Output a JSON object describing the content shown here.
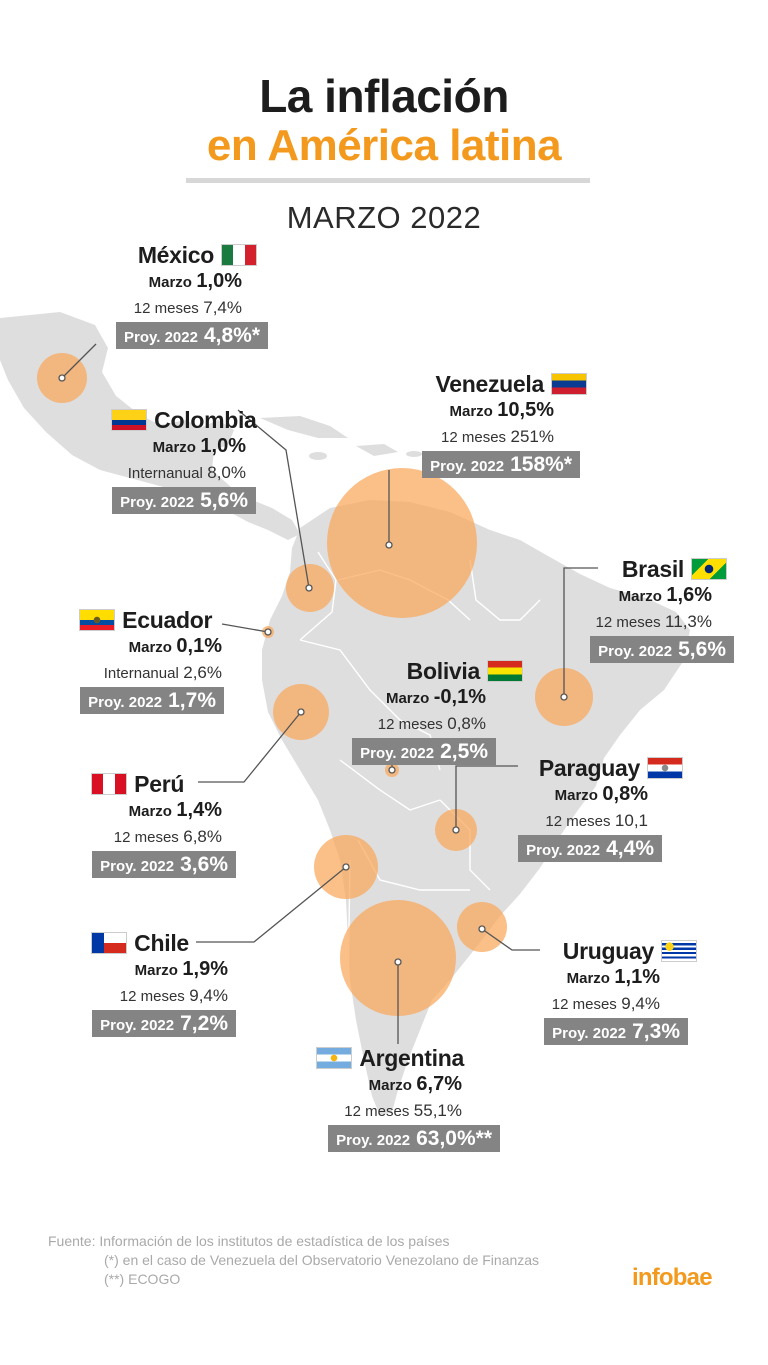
{
  "header": {
    "title_line1": "La inflación",
    "title_line2": "en América latina",
    "subtitle": "MARZO 2022",
    "title_color": "#1d1d1d",
    "accent_color": "#f39a1e"
  },
  "map": {
    "land_color": "#dedede",
    "bubble_color": "#f9a65a",
    "box_color": "#848484"
  },
  "countries": {
    "mexico": {
      "name": "México",
      "r1_label": "Marzo",
      "r1_value": "1,0%",
      "r2_label": "12 meses",
      "r2_value": "7,4%",
      "proy_label": "Proy. 2022",
      "proy_value": "4,8%*",
      "flag_icon": "mexico-flag-icon"
    },
    "venezuela": {
      "name": "Venezuela",
      "r1_label": "Marzo",
      "r1_value": "10,5%",
      "r2_label": "12 meses",
      "r2_value": "251%",
      "proy_label": "Proy. 2022",
      "proy_value": "158%*",
      "flag_icon": "venezuela-flag-icon"
    },
    "colombia": {
      "name": "Colombia",
      "r1_label": "Marzo",
      "r1_value": "1,0%",
      "r2_label": "Internanual",
      "r2_value": "8,0%",
      "proy_label": "Proy. 2022",
      "proy_value": "5,6%",
      "flag_icon": "colombia-flag-icon"
    },
    "brasil": {
      "name": "Brasil",
      "r1_label": "Marzo",
      "r1_value": "1,6%",
      "r2_label": "12 meses",
      "r2_value": "11,3%",
      "proy_label": "Proy. 2022",
      "proy_value": "5,6%",
      "flag_icon": "brasil-flag-icon"
    },
    "ecuador": {
      "name": "Ecuador",
      "r1_label": "Marzo",
      "r1_value": "0,1%",
      "r2_label": "Internanual",
      "r2_value": "2,6%",
      "proy_label": "Proy. 2022",
      "proy_value": "1,7%",
      "flag_icon": "ecuador-flag-icon"
    },
    "bolivia": {
      "name": "Bolivia",
      "r1_label": "Marzo",
      "r1_value": "-0,1%",
      "r2_label": "12 meses",
      "r2_value": "0,8%",
      "proy_label": "Proy. 2022",
      "proy_value": "2,5%",
      "flag_icon": "bolivia-flag-icon"
    },
    "peru": {
      "name": "Perú",
      "r1_label": "Marzo",
      "r1_value": "1,4%",
      "r2_label": "12 meses",
      "r2_value": "6,8%",
      "proy_label": "Proy. 2022",
      "proy_value": "3,6%",
      "flag_icon": "peru-flag-icon"
    },
    "paraguay": {
      "name": "Paraguay",
      "r1_label": "Marzo",
      "r1_value": "0,8%",
      "r2_label": "12 meses",
      "r2_value": "10,1",
      "proy_label": "Proy. 2022",
      "proy_value": "4,4%",
      "flag_icon": "paraguay-flag-icon"
    },
    "chile": {
      "name": "Chile",
      "r1_label": "Marzo",
      "r1_value": "1,9%",
      "r2_label": "12 meses",
      "r2_value": "9,4%",
      "proy_label": "Proy. 2022",
      "proy_value": "7,2%",
      "flag_icon": "chile-flag-icon"
    },
    "uruguay": {
      "name": "Uruguay",
      "r1_label": "Marzo",
      "r1_value": "1,1%",
      "r2_label": "12 meses",
      "r2_value": "9,4%",
      "proy_label": "Proy. 2022",
      "proy_value": "7,3%",
      "flag_icon": "uruguay-flag-icon"
    },
    "argentina": {
      "name": "Argentina",
      "r1_label": "Marzo",
      "r1_value": "6,7%",
      "r2_label": "12 meses",
      "r2_value": "55,1%",
      "proy_label": "Proy. 2022",
      "proy_value": "63,0%**",
      "flag_icon": "argentina-flag-icon"
    }
  },
  "footer": {
    "source_line1": "Fuente: Información de los institutos de estadística de los países",
    "source_line2": "(*) en el caso de Venezuela del Observatorio Venezolano de Finanzas",
    "source_line3": "(**) ECOGO",
    "logo": "infobae"
  }
}
